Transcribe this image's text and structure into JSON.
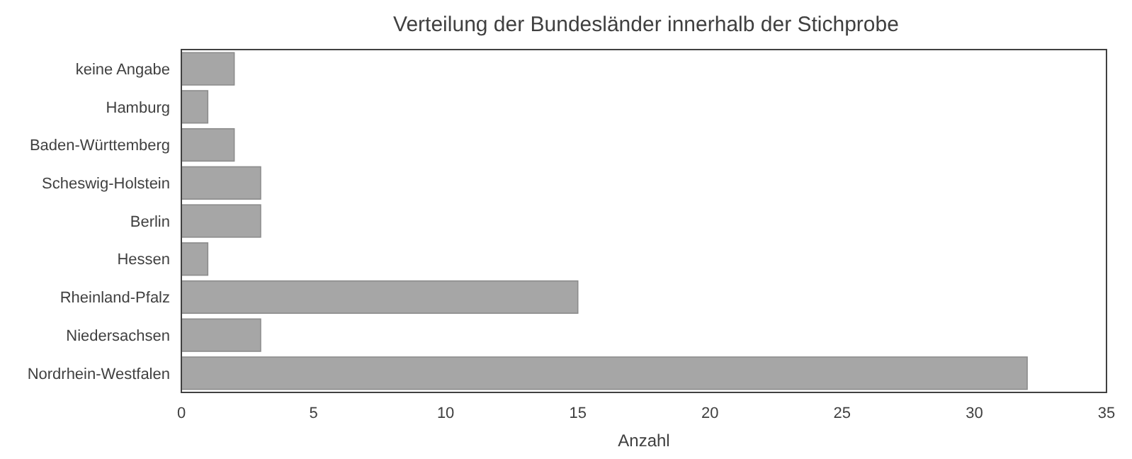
{
  "chart_data": {
    "type": "bar",
    "orientation": "horizontal",
    "title": "Verteilung der Bundesländer innerhalb der Stichprobe",
    "xlabel": "Anzahl",
    "categories": [
      "keine Angabe",
      "Hamburg",
      "Baden-Württemberg",
      "Scheswig-Holstein",
      "Berlin",
      "Hessen",
      "Rheinland-Pfalz",
      "Niedersachsen",
      "Nordrhein-Westfalen"
    ],
    "values": [
      2,
      1,
      2,
      3,
      3,
      1,
      15,
      3,
      32
    ],
    "color": "#a6a6a6",
    "xlim": [
      0,
      35
    ],
    "xticks": [
      0,
      5,
      10,
      15,
      20,
      25,
      30,
      35
    ],
    "grid": false
  }
}
